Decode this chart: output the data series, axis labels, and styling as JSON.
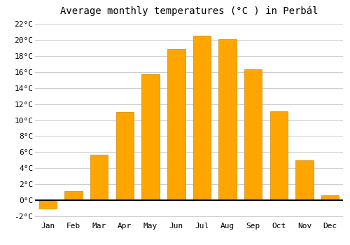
{
  "title": "Average monthly temperatures (°C ) in Perbál",
  "months": [
    "Jan",
    "Feb",
    "Mar",
    "Apr",
    "May",
    "Jun",
    "Jul",
    "Aug",
    "Sep",
    "Oct",
    "Nov",
    "Dec"
  ],
  "values": [
    -1.0,
    1.2,
    5.7,
    11.0,
    15.7,
    18.8,
    20.5,
    20.1,
    16.3,
    11.1,
    5.0,
    0.6
  ],
  "bar_color": "#FFA500",
  "bar_edge_color": "#CC8800",
  "ylim": [
    -2.5,
    22.5
  ],
  "yticks": [
    -2,
    0,
    2,
    4,
    6,
    8,
    10,
    12,
    14,
    16,
    18,
    20,
    22
  ],
  "grid_color": "#cccccc",
  "background_color": "#ffffff",
  "title_fontsize": 10,
  "tick_fontsize": 8,
  "bar_width": 0.7
}
